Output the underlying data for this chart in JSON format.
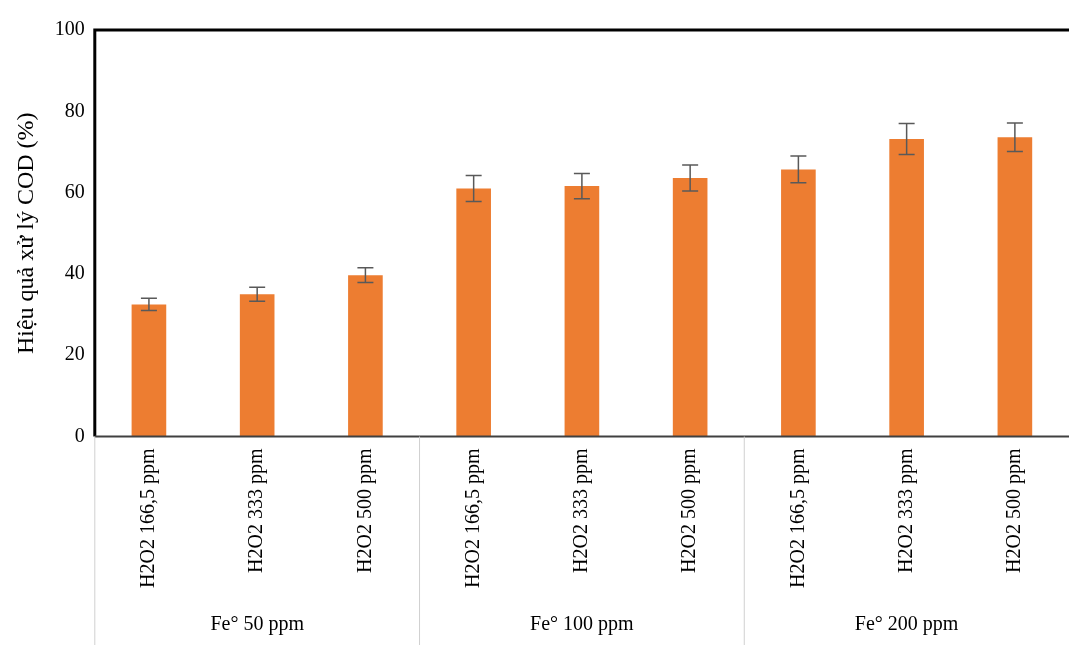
{
  "chart_data": {
    "type": "bar",
    "ylabel": "Hiệu quả xử lý COD (%)",
    "categories": [
      "H2O2 166,5 ppm",
      "H2O2 333 ppm",
      "H2O2 500 ppm",
      "H2O2 166,5 ppm",
      "H2O2 333 ppm",
      "H2O2 500 ppm",
      "H2O2 166,5 ppm",
      "H2O2 333 ppm",
      "H2O2 500 ppm"
    ],
    "values": [
      32.5,
      35,
      39.7,
      61,
      61.6,
      63.6,
      65.7,
      73.2,
      73.6
    ],
    "errors": [
      1.5,
      1.7,
      1.8,
      3.2,
      3.1,
      3.2,
      3.3,
      3.8,
      3.5
    ],
    "color": "#ed7d31",
    "ylim": [
      0,
      100
    ],
    "yticks": [
      0,
      20,
      40,
      60,
      80,
      100
    ],
    "grid": false,
    "legend": false,
    "annotations": [
      "Fe° 50 ppm",
      "Fe° 100 ppm",
      "Fe° 200 ppm"
    ]
  }
}
